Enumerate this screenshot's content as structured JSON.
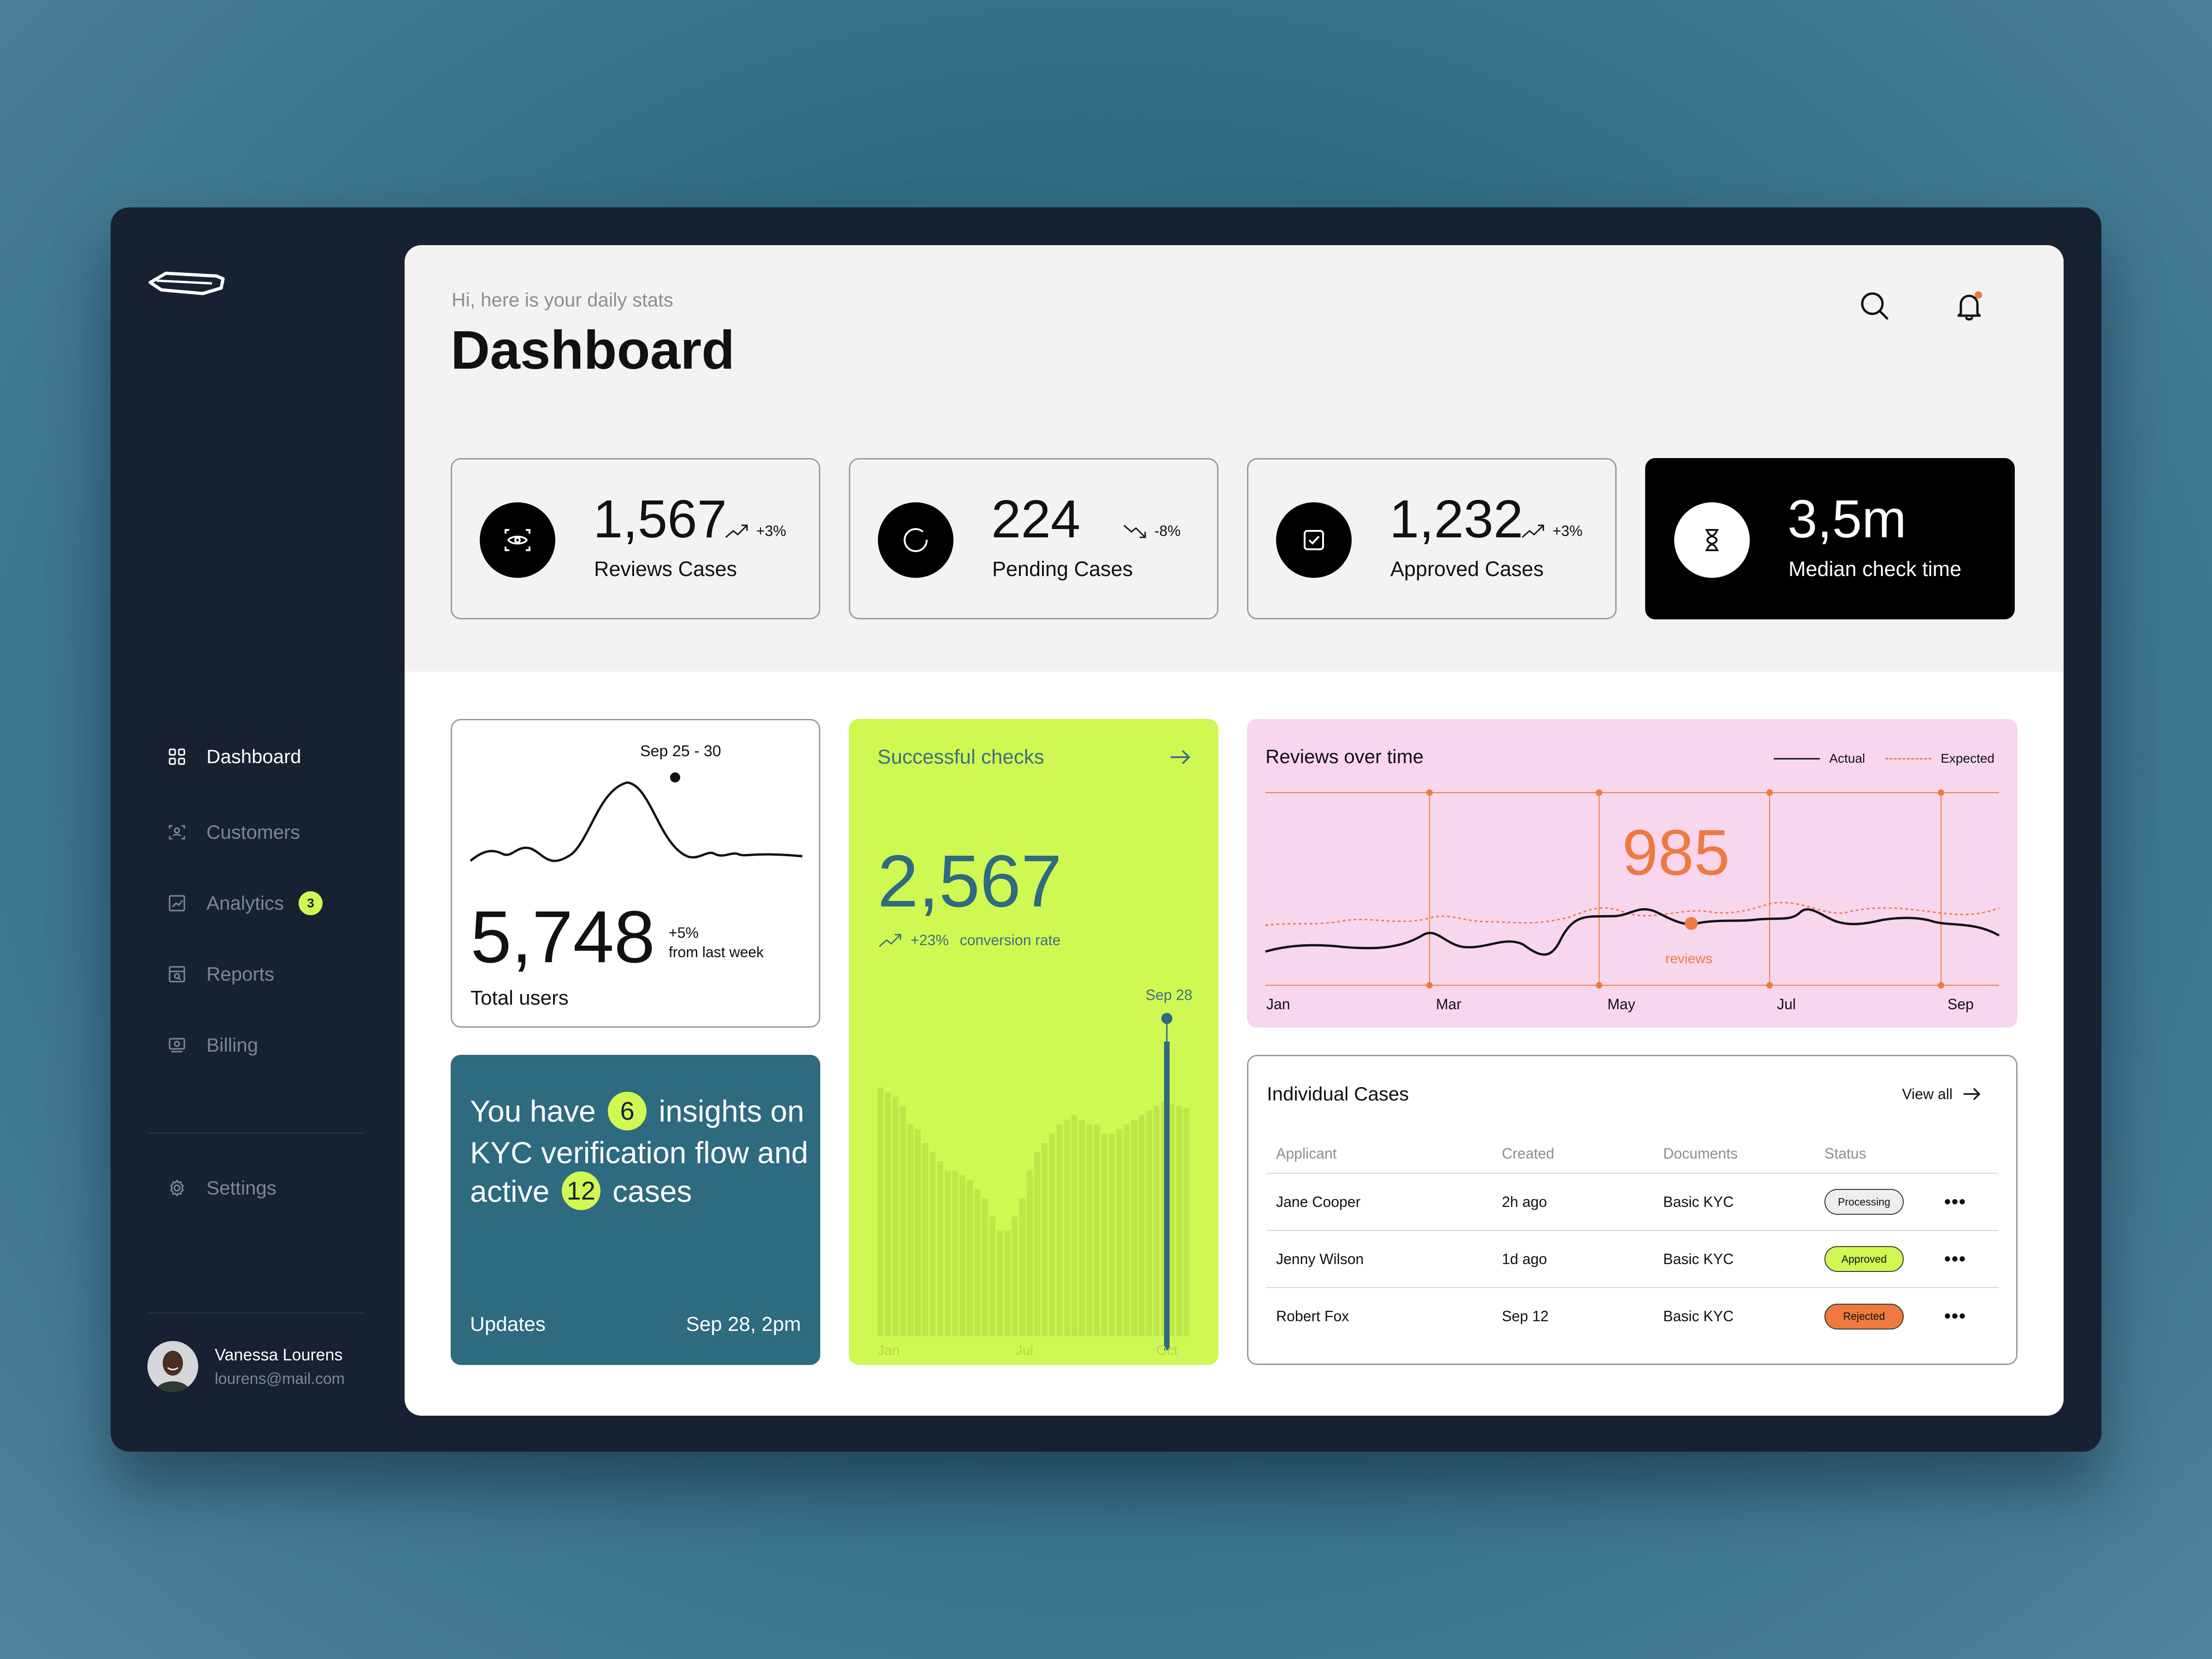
{
  "nav": {
    "items": [
      {
        "label": "Dashboard"
      },
      {
        "label": "Customers"
      },
      {
        "label": "Analytics",
        "badge": "3"
      },
      {
        "label": "Reports"
      },
      {
        "label": "Billing"
      }
    ],
    "settings": "Settings"
  },
  "user": {
    "name": "Vanessa Lourens",
    "email": "lourens@mail.com"
  },
  "header": {
    "greeting": "Hi, here is your daily stats",
    "title": "Dashboard"
  },
  "stats": [
    {
      "value": "1,567",
      "label": "Reviews Cases",
      "trend": "+3%",
      "direction": "up"
    },
    {
      "value": "224",
      "label": "Pending Cases",
      "trend": "-8%",
      "direction": "down"
    },
    {
      "value": "1,232",
      "label": "Approved Cases",
      "trend": "+3%",
      "direction": "up"
    },
    {
      "value": "3,5m",
      "label": "Median check time"
    }
  ],
  "users_card": {
    "range": "Sep 25 - 30",
    "value": "5,748",
    "change": "+5%",
    "change_note": "from last week",
    "label": "Total users"
  },
  "insight": {
    "text_1": "You have",
    "insights_count": "6",
    "text_2": "insights on KYC verification flow and active",
    "cases_count": "12",
    "text_3": "cases",
    "footer_left": "Updates",
    "footer_right": "Sep 28, 2pm"
  },
  "checks": {
    "title": "Successful checks",
    "value": "2,567",
    "change": "+23%",
    "change_note": "conversion rate",
    "highlight": "Sep 28",
    "x_labels": [
      "Jan",
      "Jul",
      "Oct"
    ]
  },
  "reviews": {
    "title": "Reviews over time",
    "legend_actual": "Actual",
    "legend_expected": "Expected",
    "highlight_value": "985",
    "highlight_label": "reviews",
    "x_labels": [
      "Jan",
      "Mar",
      "May",
      "Jul",
      "Sep"
    ]
  },
  "cases": {
    "title": "Individual Cases",
    "view_all": "View all",
    "columns": [
      "Applicant",
      "Created",
      "Documents",
      "Status"
    ],
    "rows": [
      {
        "applicant": "Jane Cooper",
        "created": "2h ago",
        "documents": "Basic KYC",
        "status": "Processing",
        "status_color": "#eeeeee"
      },
      {
        "applicant": "Jenny Wilson",
        "created": "1d ago",
        "documents": "Basic KYC",
        "status": "Approved",
        "status_color": "#d0f853"
      },
      {
        "applicant": "Robert Fox",
        "created": "Sep 12",
        "documents": "Basic KYC",
        "status": "Rejected",
        "status_color": "#ee7a3f"
      }
    ]
  },
  "colors": {
    "accent_lime": "#d0f853",
    "teal": "#2e6a80",
    "pink": "#f8d6ee",
    "orange": "#ee7a3f",
    "sidebar": "#182132"
  }
}
